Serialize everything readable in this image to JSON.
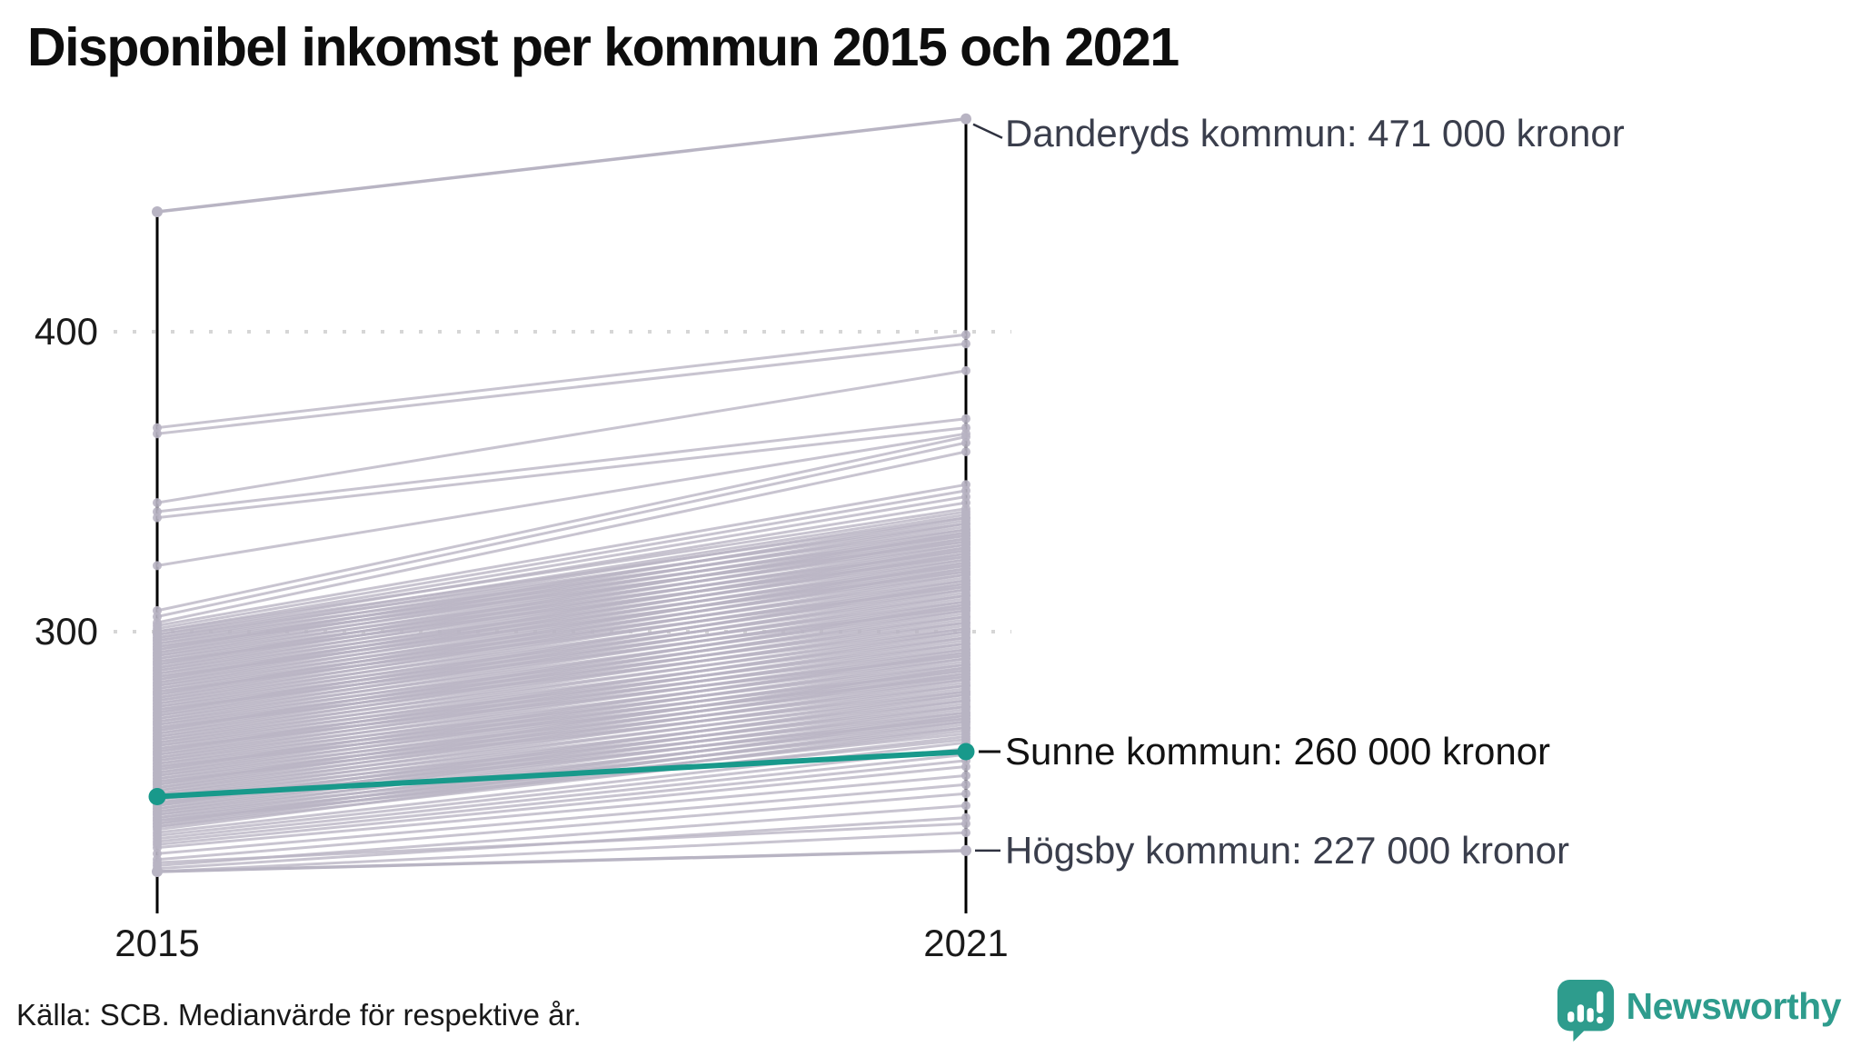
{
  "title": "Disponibel inkomst per kommun 2015 och 2021",
  "source": "Källa: SCB. Medianvärde för respektive år.",
  "branding": {
    "name": "Newsworthy",
    "icon": "newsworthy-chart-bubble-icon",
    "color": "#2E9C8D"
  },
  "chart_data": {
    "type": "line",
    "subtype": "slope-chart",
    "title": "Disponibel inkomst per kommun 2015 och 2021",
    "unit": "tusen kronor (1000 kronor)",
    "x": [
      2015,
      2021
    ],
    "x_tick_labels": [
      "2015",
      "2021"
    ],
    "y_ticks": [
      300,
      400
    ],
    "y_tick_labels": [
      "300",
      "400"
    ],
    "ylim": [
      215,
      480
    ],
    "grid": "dotted horizontal lines at y ticks",
    "legend": "none - direct annotations at right axis",
    "colors": {
      "background_line": "#b8b4c3",
      "accent": "#18998b",
      "axis": "#000000",
      "annotation_text": "#3a3e4c"
    },
    "highlighted_series": [
      {
        "name": "Danderyds kommun",
        "values": [
          440,
          471
        ],
        "label": "Danderyds kommun: 471 000 kronor",
        "line_color": "#b8b4c3",
        "label_color": "#3a3e4c",
        "emphasis": false
      },
      {
        "name": "Sunne kommun",
        "values": [
          245,
          260
        ],
        "label": "Sunne kommun: 260 000 kronor",
        "line_color": "#18998b",
        "label_color": "#121212",
        "emphasis": true
      },
      {
        "name": "Högsby kommun",
        "values": [
          220,
          227
        ],
        "label": "Högsby kommun: 227 000 kronor",
        "line_color": "#b8b4c3",
        "label_color": "#3a3e4c",
        "emphasis": false
      }
    ],
    "background_lines": [
      [
        368,
        399
      ],
      [
        366,
        396
      ],
      [
        343,
        387
      ],
      [
        340,
        371
      ],
      [
        338,
        368
      ],
      [
        322,
        366
      ],
      [
        307,
        365
      ],
      [
        305,
        363
      ],
      [
        303,
        360
      ],
      [
        302,
        349
      ],
      [
        301,
        347
      ],
      [
        300,
        345
      ],
      [
        300,
        341
      ],
      [
        299,
        338
      ],
      [
        299,
        343
      ],
      [
        298,
        336
      ],
      [
        298,
        340
      ],
      [
        297,
        334
      ],
      [
        297,
        339
      ],
      [
        296,
        332
      ],
      [
        296,
        337
      ],
      [
        295,
        335
      ],
      [
        295,
        330
      ],
      [
        294,
        333
      ],
      [
        294,
        338
      ],
      [
        293,
        331
      ],
      [
        293,
        336
      ],
      [
        292,
        329
      ],
      [
        292,
        334
      ],
      [
        291,
        327
      ],
      [
        291,
        332
      ],
      [
        290,
        330
      ],
      [
        290,
        325
      ],
      [
        289,
        328
      ],
      [
        289,
        333
      ],
      [
        288,
        326
      ],
      [
        288,
        331
      ],
      [
        287,
        324
      ],
      [
        287,
        329
      ],
      [
        286,
        322
      ],
      [
        286,
        327
      ],
      [
        285,
        325
      ],
      [
        285,
        320
      ],
      [
        284,
        323
      ],
      [
        284,
        328
      ],
      [
        283,
        321
      ],
      [
        283,
        326
      ],
      [
        282,
        319
      ],
      [
        282,
        324
      ],
      [
        281,
        317
      ],
      [
        281,
        322
      ],
      [
        280,
        320
      ],
      [
        280,
        315
      ],
      [
        279,
        318
      ],
      [
        279,
        323
      ],
      [
        278,
        316
      ],
      [
        278,
        321
      ],
      [
        277,
        314
      ],
      [
        277,
        319
      ],
      [
        276,
        312
      ],
      [
        276,
        317
      ],
      [
        275,
        315
      ],
      [
        275,
        310
      ],
      [
        274,
        313
      ],
      [
        274,
        308
      ],
      [
        273,
        311
      ],
      [
        273,
        316
      ],
      [
        272,
        309
      ],
      [
        272,
        314
      ],
      [
        271,
        307
      ],
      [
        271,
        312
      ],
      [
        270,
        305
      ],
      [
        270,
        310
      ],
      [
        269,
        303
      ],
      [
        269,
        308
      ],
      [
        268,
        306
      ],
      [
        268,
        301
      ],
      [
        267,
        304
      ],
      [
        267,
        309
      ],
      [
        266,
        302
      ],
      [
        266,
        307
      ],
      [
        265,
        300
      ],
      [
        265,
        305
      ],
      [
        264,
        298
      ],
      [
        264,
        303
      ],
      [
        263,
        296
      ],
      [
        263,
        301
      ],
      [
        262,
        299
      ],
      [
        262,
        294
      ],
      [
        261,
        297
      ],
      [
        261,
        292
      ],
      [
        260,
        295
      ],
      [
        260,
        300
      ],
      [
        259,
        293
      ],
      [
        259,
        298
      ],
      [
        258,
        291
      ],
      [
        258,
        296
      ],
      [
        257,
        289
      ],
      [
        257,
        294
      ],
      [
        256,
        287
      ],
      [
        256,
        292
      ],
      [
        255,
        290
      ],
      [
        255,
        285
      ],
      [
        254,
        288
      ],
      [
        254,
        293
      ],
      [
        253,
        286
      ],
      [
        253,
        291
      ],
      [
        252,
        284
      ],
      [
        252,
        289
      ],
      [
        251,
        282
      ],
      [
        251,
        287
      ],
      [
        250,
        285
      ],
      [
        250,
        280
      ],
      [
        249,
        283
      ],
      [
        249,
        288
      ],
      [
        248,
        281
      ],
      [
        248,
        286
      ],
      [
        247,
        279
      ],
      [
        247,
        284
      ],
      [
        246,
        277
      ],
      [
        246,
        282
      ],
      [
        245,
        275
      ],
      [
        245,
        280
      ],
      [
        244,
        273
      ],
      [
        244,
        278
      ],
      [
        243,
        276
      ],
      [
        243,
        271
      ],
      [
        242,
        274
      ],
      [
        242,
        279
      ],
      [
        241,
        272
      ],
      [
        241,
        277
      ],
      [
        240,
        270
      ],
      [
        240,
        275
      ],
      [
        239,
        268
      ],
      [
        239,
        273
      ],
      [
        238,
        266
      ],
      [
        238,
        271
      ],
      [
        237,
        269
      ],
      [
        237,
        264
      ],
      [
        236,
        267
      ],
      [
        236,
        272
      ],
      [
        235,
        265
      ],
      [
        235,
        270
      ],
      [
        234,
        268
      ],
      [
        233,
        263
      ],
      [
        232,
        261
      ],
      [
        231,
        259
      ],
      [
        230,
        257
      ],
      [
        229,
        255
      ],
      [
        228,
        252
      ],
      [
        226,
        249
      ],
      [
        224,
        246
      ],
      [
        222,
        242
      ],
      [
        221,
        238
      ],
      [
        220,
        233
      ],
      [
        223,
        236
      ]
    ]
  }
}
